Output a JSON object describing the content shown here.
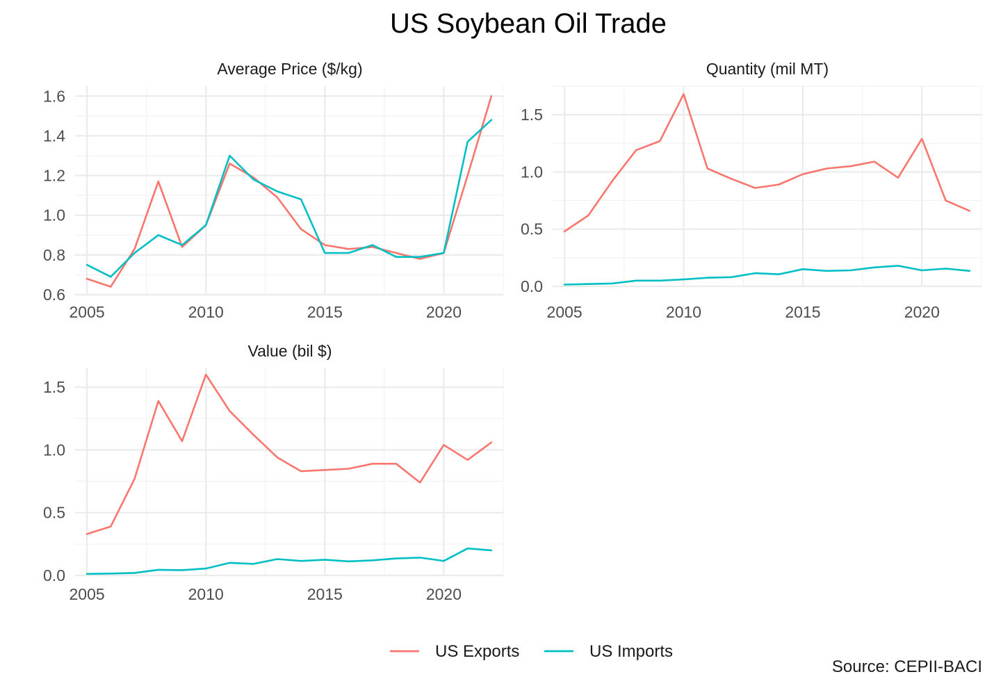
{
  "title": "US Soybean Oil Trade",
  "caption": "Source: CEPII-BACI",
  "legend": [
    {
      "name": "US Exports",
      "color": "#F8766D"
    },
    {
      "name": "US Imports",
      "color": "#00BFC4"
    }
  ],
  "chart_data": [
    {
      "type": "line",
      "title": "Average Price ($/kg)",
      "xlabel": "",
      "ylabel": "",
      "xlim": [
        2004.5,
        2022.5
      ],
      "ylim": [
        0.6,
        1.65
      ],
      "x_ticks": [
        2005,
        2010,
        2015,
        2020
      ],
      "x_tick_labels": [
        "2005",
        "2010",
        "2015",
        "2020"
      ],
      "y_ticks": [
        0.6,
        0.8,
        1.0,
        1.2,
        1.4,
        1.6
      ],
      "y_tick_labels": [
        "0.6",
        "0.8",
        "1.0",
        "1.2",
        "1.4",
        "1.6"
      ],
      "grid": true,
      "x": [
        2005,
        2006,
        2007,
        2008,
        2009,
        2010,
        2011,
        2012,
        2013,
        2014,
        2015,
        2016,
        2017,
        2018,
        2019,
        2020,
        2021,
        2022
      ],
      "series": [
        {
          "name": "US Exports",
          "values": [
            0.68,
            0.64,
            0.83,
            1.17,
            0.84,
            0.95,
            1.26,
            1.19,
            1.09,
            0.93,
            0.85,
            0.83,
            0.84,
            0.81,
            0.78,
            0.81,
            1.2,
            1.6
          ]
        },
        {
          "name": "US Imports",
          "values": [
            0.75,
            0.69,
            0.81,
            0.9,
            0.85,
            0.95,
            1.3,
            1.18,
            1.12,
            1.08,
            0.81,
            0.81,
            0.85,
            0.79,
            0.79,
            0.81,
            1.37,
            1.48
          ]
        }
      ]
    },
    {
      "type": "line",
      "title": "Quantity (mil MT)",
      "xlabel": "",
      "ylabel": "",
      "xlim": [
        2004.5,
        2022.5
      ],
      "ylim": [
        0.0,
        1.75
      ],
      "x_ticks": [
        2005,
        2010,
        2015,
        2020
      ],
      "x_tick_labels": [
        "2005",
        "2010",
        "2015",
        "2020"
      ],
      "y_ticks": [
        0.0,
        0.5,
        1.0,
        1.5
      ],
      "y_tick_labels": [
        "0.0",
        "0.5",
        "1.0",
        "1.5"
      ],
      "grid": true,
      "x": [
        2005,
        2006,
        2007,
        2008,
        2009,
        2010,
        2011,
        2012,
        2013,
        2014,
        2015,
        2016,
        2017,
        2018,
        2019,
        2020,
        2021,
        2022
      ],
      "series": [
        {
          "name": "US Exports",
          "values": [
            0.48,
            0.62,
            0.92,
            1.19,
            1.27,
            1.68,
            1.03,
            0.94,
            0.86,
            0.89,
            0.98,
            1.03,
            1.05,
            1.09,
            0.95,
            1.29,
            0.75,
            0.66
          ]
        },
        {
          "name": "US Imports",
          "values": [
            0.015,
            0.02,
            0.025,
            0.05,
            0.05,
            0.06,
            0.075,
            0.08,
            0.115,
            0.105,
            0.15,
            0.135,
            0.14,
            0.165,
            0.18,
            0.14,
            0.155,
            0.135
          ]
        }
      ]
    },
    {
      "type": "line",
      "title": "Value (bil $)",
      "xlabel": "",
      "ylabel": "",
      "xlim": [
        2004.5,
        2022.5
      ],
      "ylim": [
        0.0,
        1.65
      ],
      "x_ticks": [
        2005,
        2010,
        2015,
        2020
      ],
      "x_tick_labels": [
        "2005",
        "2010",
        "2015",
        "2020"
      ],
      "y_ticks": [
        0.0,
        0.5,
        1.0,
        1.5
      ],
      "y_tick_labels": [
        "0.0",
        "0.5",
        "1.0",
        "1.5"
      ],
      "grid": true,
      "x": [
        2005,
        2006,
        2007,
        2008,
        2009,
        2010,
        2011,
        2012,
        2013,
        2014,
        2015,
        2016,
        2017,
        2018,
        2019,
        2020,
        2021,
        2022
      ],
      "series": [
        {
          "name": "US Exports",
          "values": [
            0.33,
            0.39,
            0.77,
            1.39,
            1.07,
            1.6,
            1.31,
            1.12,
            0.94,
            0.83,
            0.84,
            0.85,
            0.89,
            0.89,
            0.74,
            1.04,
            0.92,
            1.06
          ]
        },
        {
          "name": "US Imports",
          "values": [
            0.012,
            0.015,
            0.02,
            0.045,
            0.042,
            0.055,
            0.1,
            0.092,
            0.13,
            0.115,
            0.125,
            0.112,
            0.12,
            0.135,
            0.142,
            0.115,
            0.215,
            0.2
          ]
        }
      ]
    }
  ]
}
